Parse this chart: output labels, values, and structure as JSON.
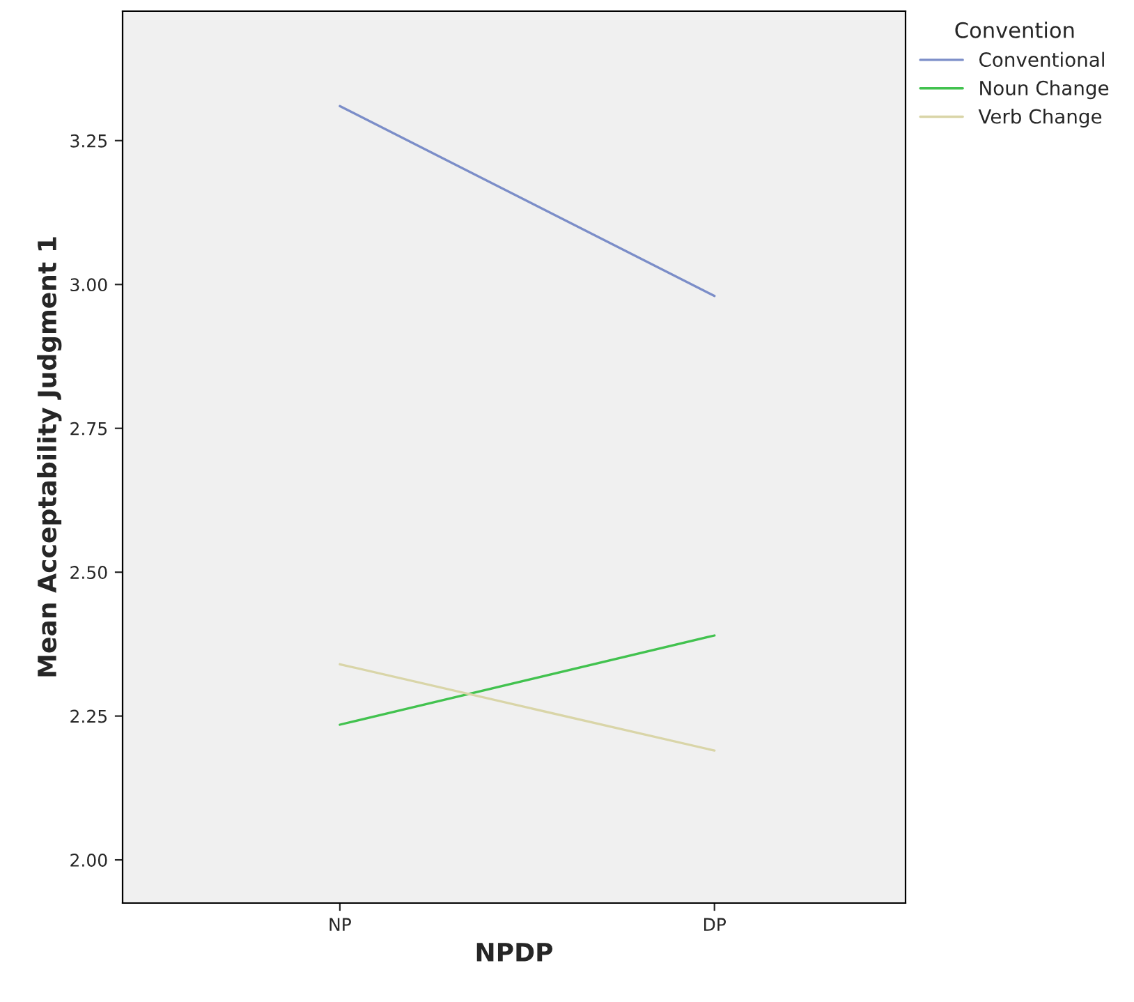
{
  "chart_data": {
    "type": "line",
    "xlabel": "NPDP",
    "ylabel": "Mean Acceptability Judgment 1",
    "legend_title": "Convention",
    "categories": [
      "NP",
      "DP"
    ],
    "series": [
      {
        "name": "Conventional",
        "color": "#7b8dc8",
        "values": [
          3.31,
          2.98
        ]
      },
      {
        "name": "Noun Change",
        "color": "#42c24f",
        "values": [
          2.235,
          2.39
        ]
      },
      {
        "name": "Verb Change",
        "color": "#d9d5a8",
        "values": [
          2.34,
          2.19
        ]
      }
    ],
    "ylim": [
      1.925,
      3.475
    ],
    "yticks": [
      {
        "value": 2.0,
        "label": "2.00"
      },
      {
        "value": 2.25,
        "label": "2.25"
      },
      {
        "value": 2.5,
        "label": "2.50"
      },
      {
        "value": 2.75,
        "label": "2.75"
      },
      {
        "value": 3.0,
        "label": "3.00"
      },
      {
        "value": 3.25,
        "label": "3.25"
      }
    ],
    "grid": false,
    "legend": "top right",
    "marker": "none",
    "line_style": "solid"
  }
}
